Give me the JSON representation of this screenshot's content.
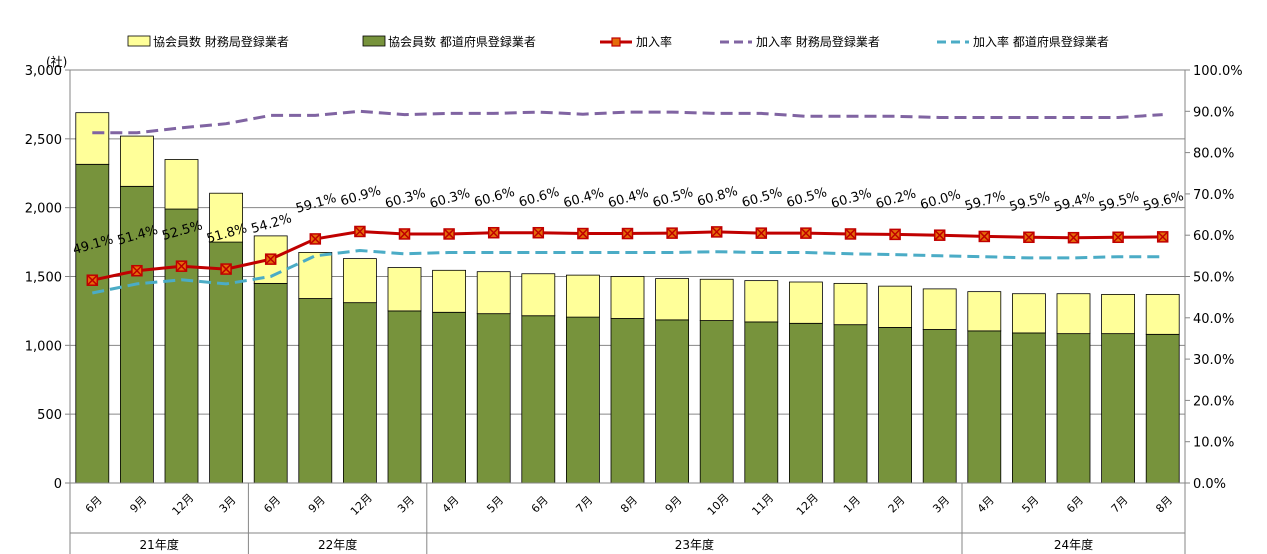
{
  "chart_data": {
    "type": "bar",
    "title": "",
    "y_unit": "(社)",
    "ylim": [
      0,
      3000
    ],
    "y_ticks": [
      "0",
      "500",
      "1,000",
      "1,500",
      "2,000",
      "2,500",
      "3,000"
    ],
    "y2lim": [
      0,
      100
    ],
    "y2_ticks": [
      "0.0%",
      "10.0%",
      "20.0%",
      "30.0%",
      "40.0%",
      "50.0%",
      "60.0%",
      "70.0%",
      "80.0%",
      "90.0%",
      "100.0%"
    ],
    "grid": "horizontal",
    "legend_position": "top",
    "categories": [
      "6月",
      "9月",
      "12月",
      "3月",
      "6月",
      "9月",
      "12月",
      "3月",
      "4月",
      "5月",
      "6月",
      "7月",
      "8月",
      "9月",
      "10月",
      "11月",
      "12月",
      "1月",
      "2月",
      "3月",
      "4月",
      "5月",
      "6月",
      "7月",
      "8月"
    ],
    "fiscal_years": [
      {
        "label": "21年度",
        "count": 4
      },
      {
        "label": "22年度",
        "count": 4
      },
      {
        "label": "23年度",
        "count": 12
      },
      {
        "label": "24年度",
        "count": 5
      }
    ],
    "bar_series": [
      {
        "name": "協会員数 都道府県登録業者",
        "color": "#77933c",
        "values": [
          2315,
          2155,
          1990,
          1750,
          1450,
          1340,
          1310,
          1250,
          1240,
          1230,
          1215,
          1205,
          1195,
          1185,
          1180,
          1170,
          1160,
          1150,
          1130,
          1115,
          1105,
          1090,
          1085,
          1085,
          1080
        ]
      },
      {
        "name": "協会員数 財務局登録業者",
        "color": "#ffff99",
        "values": [
          375,
          365,
          360,
          355,
          345,
          335,
          320,
          315,
          305,
          305,
          305,
          305,
          305,
          300,
          300,
          300,
          300,
          300,
          300,
          295,
          285,
          285,
          290,
          285,
          290
        ]
      }
    ],
    "line_series": [
      {
        "name": "加入率",
        "color": "#c00000",
        "style": "solid-marker",
        "values": [
          49.1,
          51.4,
          52.5,
          51.8,
          54.2,
          59.1,
          60.9,
          60.3,
          60.3,
          60.6,
          60.6,
          60.4,
          60.4,
          60.5,
          60.8,
          60.5,
          60.5,
          60.3,
          60.2,
          60.0,
          59.7,
          59.5,
          59.4,
          59.5,
          59.6
        ],
        "labels": [
          "49.1%",
          "51.4%",
          "52.5%",
          "51.8%",
          "54.2%",
          "59.1%",
          "60.9%",
          "60.3%",
          "60.3%",
          "60.6%",
          "60.6%",
          "60.4%",
          "60.4%",
          "60.5%",
          "60.8%",
          "60.5%",
          "60.5%",
          "60.3%",
          "60.2%",
          "60.0%",
          "59.7%",
          "59.5%",
          "59.4%",
          "59.5%",
          "59.6%"
        ]
      },
      {
        "name": "加入率 財務局登録業者",
        "color": "#8064a2",
        "style": "dash",
        "values": [
          84.8,
          84.8,
          86.0,
          87.0,
          89.0,
          89.0,
          90.0,
          89.2,
          89.5,
          89.5,
          89.8,
          89.3,
          89.8,
          89.8,
          89.5,
          89.5,
          88.8,
          88.8,
          88.8,
          88.5,
          88.5,
          88.5,
          88.5,
          88.5,
          89.2
        ]
      },
      {
        "name": "加入率 都道府県登録業者",
        "color": "#4bacc6",
        "style": "dash",
        "values": [
          46.0,
          48.2,
          49.2,
          48.2,
          50.0,
          55.0,
          56.3,
          55.5,
          55.8,
          55.8,
          55.8,
          55.8,
          55.8,
          55.8,
          56.0,
          55.8,
          55.8,
          55.5,
          55.3,
          55.0,
          54.8,
          54.5,
          54.5,
          54.8,
          54.8
        ]
      }
    ]
  }
}
